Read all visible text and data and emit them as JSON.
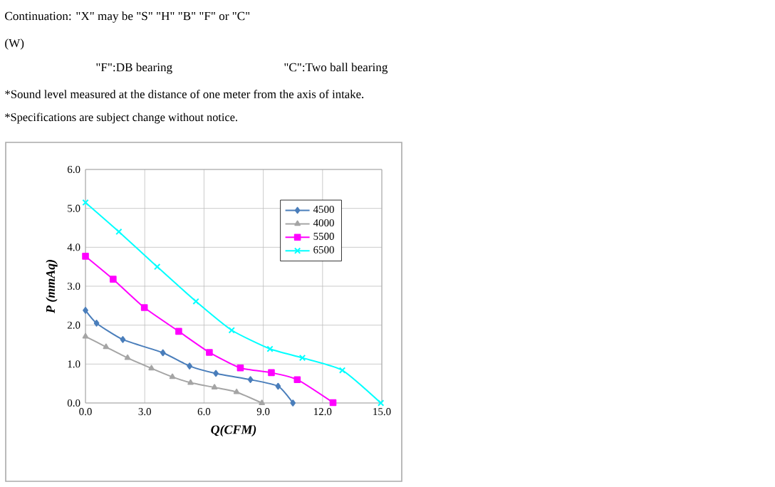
{
  "chart_data": {
    "type": "line",
    "annotations": [
      "Continuation: \"X\" may be \"S\" \"H\" \"B\" \"F\" or \"C\"",
      "(W)",
      "\"F\":DB bearing",
      "\"C\":Two ball bearing",
      "*Sound level measured at the distance of one meter from the axis of intake.",
      "*Specifications are subject change without notice."
    ],
    "xlabel": "Q(CFM)",
    "ylabel": "P (mmAq)",
    "xlim": [
      0,
      15
    ],
    "ylim": [
      0,
      6
    ],
    "xticks": [
      {
        "value": 0,
        "label": "0.0"
      },
      {
        "value": 3,
        "label": "3.0"
      },
      {
        "value": 6,
        "label": "6.0"
      },
      {
        "value": 9,
        "label": "9.0"
      },
      {
        "value": 12,
        "label": "12.0"
      },
      {
        "value": 15,
        "label": "15.0"
      }
    ],
    "yticks": [
      {
        "value": 0,
        "label": "0.0"
      },
      {
        "value": 1,
        "label": "1.0"
      },
      {
        "value": 2,
        "label": "2.0"
      },
      {
        "value": 3,
        "label": "3.0"
      },
      {
        "value": 4,
        "label": "4.0"
      },
      {
        "value": 5,
        "label": "5.0"
      },
      {
        "value": 6,
        "label": "6.0"
      }
    ],
    "grid": true,
    "legend": "top right",
    "line_style": "solid",
    "series": [
      {
        "name": "4500",
        "color": "#4a7ebb",
        "marker": "diamond",
        "x": [
          0,
          0.56,
          1.89,
          3.92,
          5.27,
          6.6,
          8.35,
          9.75,
          10.5
        ],
        "values": [
          2.38,
          2.05,
          1.63,
          1.29,
          0.95,
          0.76,
          0.6,
          0.43,
          0
        ]
      },
      {
        "name": "4000",
        "color": "#a5a5a5",
        "marker": "triangle",
        "x": [
          0,
          1.04,
          2.13,
          3.34,
          4.4,
          5.32,
          6.53,
          7.65,
          8.93
        ],
        "values": [
          1.71,
          1.44,
          1.16,
          0.89,
          0.67,
          0.52,
          0.4,
          0.28,
          0
        ]
      },
      {
        "name": "5500",
        "color": "#ff00ff",
        "marker": "square",
        "x": [
          0,
          1.4,
          2.98,
          4.72,
          6.27,
          7.84,
          9.41,
          10.72,
          12.53
        ],
        "values": [
          3.77,
          3.18,
          2.45,
          1.84,
          1.3,
          0.9,
          0.78,
          0.6,
          0.01
        ]
      },
      {
        "name": "6500",
        "color": "#00ffff",
        "marker": "cross",
        "x": [
          0,
          1.69,
          3.63,
          5.59,
          7.4,
          9.34,
          10.98,
          13.0,
          14.95
        ],
        "values": [
          5.15,
          4.4,
          3.5,
          2.61,
          1.87,
          1.39,
          1.16,
          0.84,
          0
        ]
      }
    ]
  }
}
